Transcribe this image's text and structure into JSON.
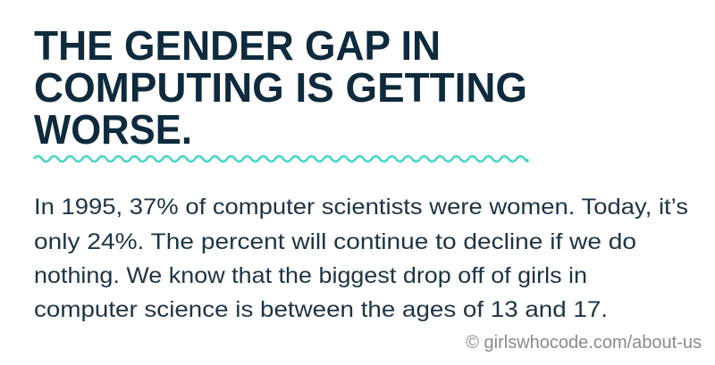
{
  "heading": {
    "lines": [
      "THE GENDER GAP IN",
      "COMPUTING IS GETTING",
      "WORSE."
    ]
  },
  "body": {
    "lines": [
      "In 1995, 37% of computer scientists were women. Today, it’s",
      "only 24%. The percent will continue to decline if we do",
      "nothing. We know that the biggest drop off of girls in",
      "computer science is between the ages of 13 and 17."
    ]
  },
  "credit": "© girlswhocode.com/about-us"
}
